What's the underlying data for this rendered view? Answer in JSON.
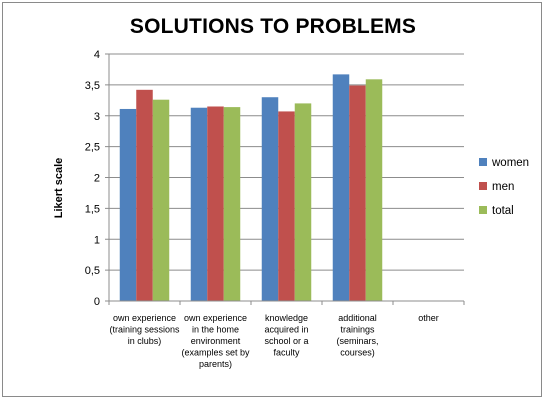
{
  "chart_data": {
    "type": "bar",
    "title": "SOLUTIONS TO PROBLEMS",
    "ylabel": "Likert scale",
    "xlabel": "",
    "ylim": [
      0,
      4
    ],
    "yticks": [
      "0",
      "0,5",
      "1",
      "1,5",
      "2",
      "2,5",
      "3",
      "3,5",
      "4"
    ],
    "grid": true,
    "legend_position": "right",
    "categories": [
      [
        "own experience",
        "(training sessions",
        "in clubs)"
      ],
      [
        "own experience",
        "in the home",
        "environment",
        "(examples set by",
        "parents)"
      ],
      [
        "knowledge",
        "acquired in",
        "school or a",
        "faculty"
      ],
      [
        "additional",
        "trainings",
        "(seminars,",
        "courses)"
      ],
      [
        "other"
      ]
    ],
    "series": [
      {
        "name": "women",
        "color": "#4f81bd",
        "values": [
          3.11,
          3.13,
          3.3,
          3.67,
          0
        ]
      },
      {
        "name": "men",
        "color": "#c0504d",
        "values": [
          3.42,
          3.15,
          3.07,
          3.49,
          0
        ]
      },
      {
        "name": "total",
        "color": "#9bbb59",
        "values": [
          3.26,
          3.14,
          3.2,
          3.59,
          0
        ]
      }
    ]
  }
}
